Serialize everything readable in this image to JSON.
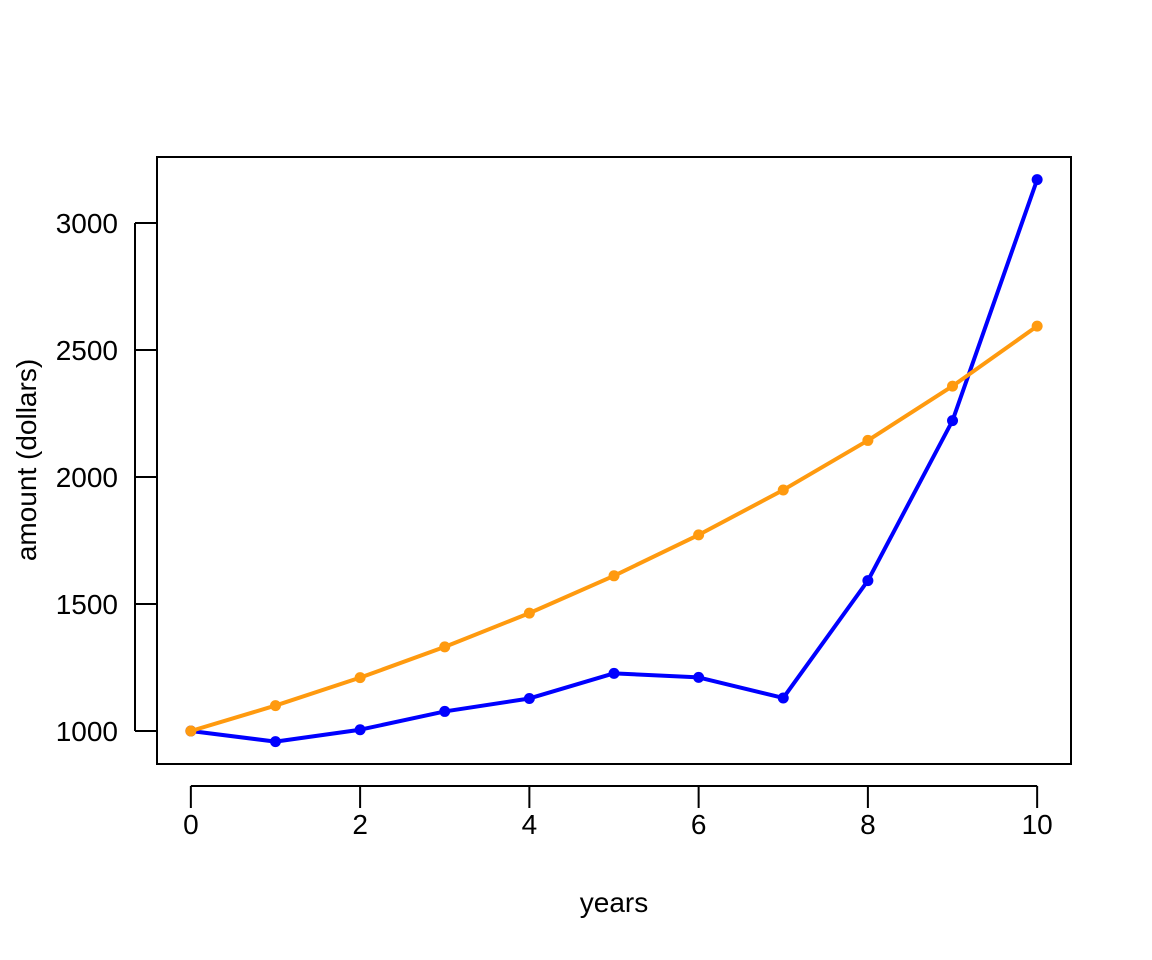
{
  "chart_data": {
    "type": "line",
    "title": "",
    "xlabel": "years",
    "ylabel": "amount (dollars)",
    "xlim": [
      -0.4,
      10.4
    ],
    "ylim": [
      870,
      3260
    ],
    "x_ticks": [
      0,
      2,
      4,
      6,
      8,
      10
    ],
    "y_ticks": [
      1000,
      1500,
      2000,
      2500,
      3000
    ],
    "x_tick_labels": [
      "0",
      "2",
      "4",
      "6",
      "8",
      "10"
    ],
    "y_tick_labels": [
      "1000",
      "1500",
      "2000",
      "2500",
      "3000"
    ],
    "grid": false,
    "x": [
      0,
      1,
      2,
      3,
      4,
      5,
      6,
      7,
      8,
      9,
      10
    ],
    "series": [
      {
        "color": "#0000ff",
        "values": [
          1000,
          958,
          1005,
          1077,
          1128,
          1227,
          1211,
          1130,
          1592,
          2222,
          3171
        ]
      },
      {
        "color": "#ff9a0f",
        "values": [
          1000,
          1100,
          1210,
          1331,
          1464,
          1611,
          1772,
          1949,
          2144,
          2358,
          2594
        ]
      }
    ]
  }
}
